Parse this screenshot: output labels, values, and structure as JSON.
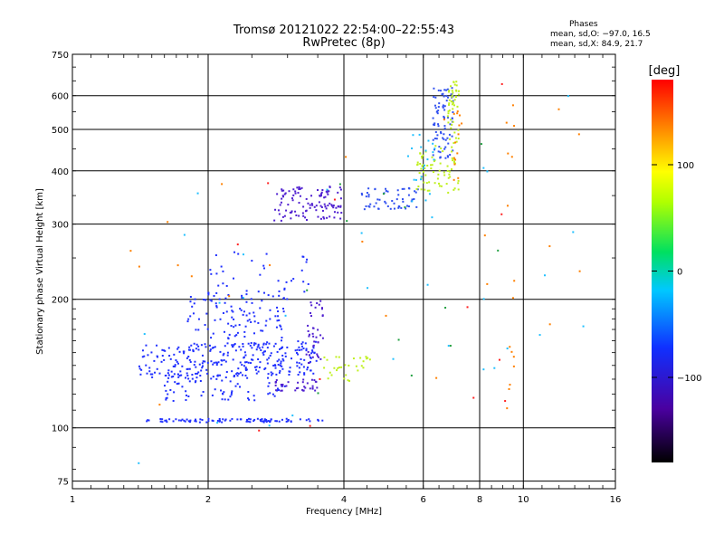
{
  "chart_data": {
    "type": "scatter",
    "title": "Tromsø 20121022 22:54:00–22:55:43",
    "subtitle": "RwPretec (8p)",
    "xlabel": "Frequency [MHz]",
    "ylabel": "Stationary phase Virtual Height [km]",
    "x_scale": "log",
    "y_scale": "log",
    "xlim": [
      1,
      16
    ],
    "ylim": [
      72,
      750
    ],
    "x_ticks": [
      1,
      2,
      4,
      6,
      8,
      10,
      16
    ],
    "y_ticks": [
      75,
      100,
      200,
      300,
      400,
      500,
      600,
      750
    ],
    "grid": true,
    "phase_stats": {
      "title": "Phases",
      "o_line": "mean, sd,O: −97.0, 16.5",
      "x_line": "mean, sd,X:  84.9, 21.7"
    },
    "colorbar": {
      "label": "[deg]",
      "range": [
        -180,
        180
      ],
      "ticks": [
        "100",
        "0",
        "−100"
      ],
      "tick_values": [
        100,
        0,
        -100
      ]
    },
    "series": [
      {
        "color": "#2030ff",
        "traces": [
          {
            "f": [
              1.45,
              3.6
            ],
            "h": [
              103,
              105
            ],
            "n": 90,
            "jit": 0.02
          },
          {
            "f": [
              1.4,
              3.5
            ],
            "h": [
              130,
              160
            ],
            "n": 260,
            "jit": 0.12
          },
          {
            "f": [
              1.6,
              3.0
            ],
            "h": [
              115,
              140
            ],
            "n": 90,
            "jit": 0.06
          },
          {
            "f": [
              1.8,
              3.0
            ],
            "h": [
              150,
              215
            ],
            "n": 120,
            "jit": 0.1
          },
          {
            "f": [
              2.0,
              3.4
            ],
            "h": [
              200,
              265
            ],
            "n": 35,
            "jit": 0.08
          }
        ]
      },
      {
        "color": "#5020d0",
        "traces": [
          {
            "f": [
              2.8,
              3.55
            ],
            "h": [
              122,
              130
            ],
            "n": 35,
            "jit": 0.03
          },
          {
            "f": [
              3.3,
              3.6
            ],
            "h": [
              140,
              200
            ],
            "n": 40,
            "jit": 0.06
          },
          {
            "f": [
              2.8,
              3.95
            ],
            "h": [
              305,
              375
            ],
            "n": 110,
            "jit": 0.06
          }
        ]
      },
      {
        "color": "#3050f0",
        "traces": [
          {
            "f": [
              4.3,
              5.9
            ],
            "h": [
              325,
              365
            ],
            "n": 55,
            "jit": 0.03
          },
          {
            "f": [
              6.3,
              7.0
            ],
            "h": [
              420,
              640
            ],
            "n": 80,
            "jit": 0.05
          }
        ]
      },
      {
        "color": "#c0f020",
        "traces": [
          {
            "f": [
              3.6,
              4.6
            ],
            "h": [
              128,
              150
            ],
            "n": 30,
            "jit": 0.04
          },
          {
            "f": [
              5.8,
              7.2
            ],
            "h": [
              350,
              460
            ],
            "n": 70,
            "jit": 0.03
          },
          {
            "f": [
              6.8,
              7.2
            ],
            "h": [
              460,
              650
            ],
            "n": 45,
            "jit": 0.03
          }
        ]
      },
      {
        "color": "#ff8000",
        "traces": [
          {
            "f": [
              7.0,
              7.3
            ],
            "h": [
              380,
              560
            ],
            "n": 14,
            "jit": 0.04
          },
          {
            "f": [
              9.2,
              9.6
            ],
            "h": [
              100,
              600
            ],
            "n": 14,
            "jit": 0.05
          },
          {
            "f": [
              1.3,
              15
            ],
            "h": [
              80,
              650
            ],
            "n": 22,
            "jit": 0.3
          }
        ]
      },
      {
        "color": "#20c0ff",
        "traces": [
          {
            "f": [
              1.2,
              14
            ],
            "h": [
              78,
              660
            ],
            "n": 30,
            "jit": 0.3
          },
          {
            "f": [
              5.6,
              6.4
            ],
            "h": [
              330,
              500
            ],
            "n": 20,
            "jit": 0.06
          }
        ]
      },
      {
        "color": "#ff2020",
        "traces": [
          {
            "f": [
              2.3,
              9.4
            ],
            "h": [
              75,
              660
            ],
            "n": 12,
            "jit": 0.2
          }
        ]
      },
      {
        "color": "#20a040",
        "traces": [
          {
            "f": [
              3.0,
              9.4
            ],
            "h": [
              100,
              500
            ],
            "n": 12,
            "jit": 0.2
          }
        ]
      }
    ]
  }
}
